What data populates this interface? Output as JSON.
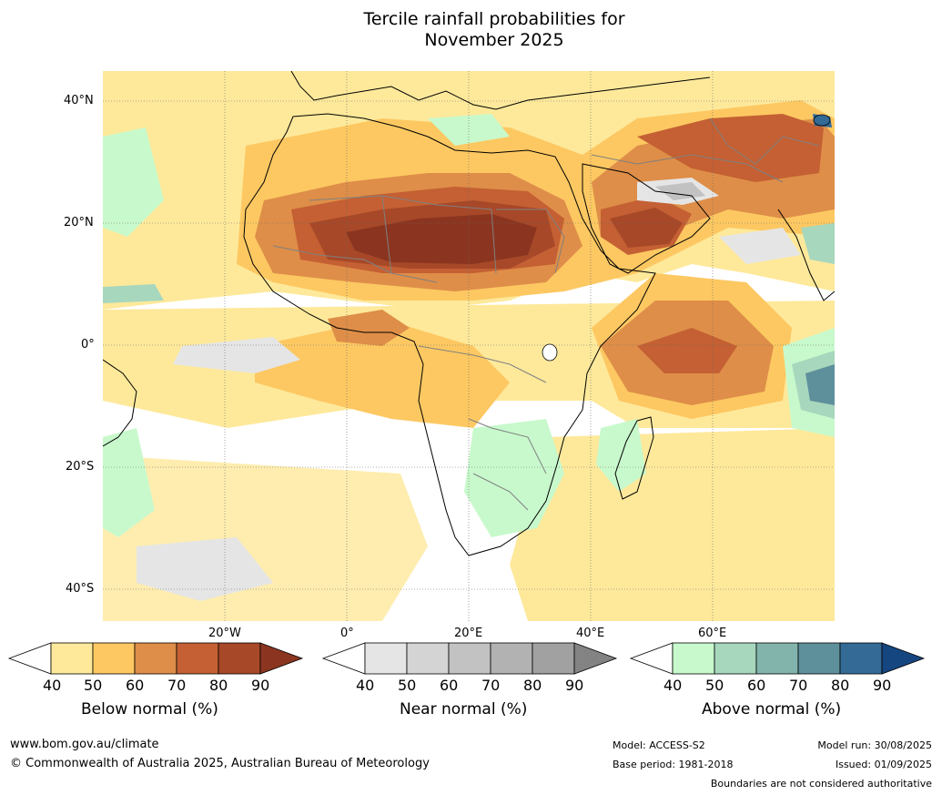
{
  "title": {
    "line1": "Tercile rainfall probabilities for",
    "line2": "November 2025"
  },
  "map": {
    "lat_labels": [
      "40°N",
      "20°N",
      "0°",
      "20°S",
      "40°S"
    ],
    "lon_labels": [
      "20°W",
      "0°",
      "20°E",
      "40°E",
      "60°E"
    ],
    "land_color": "#ffffff",
    "coast_color": "#000000",
    "border_color": "#808080"
  },
  "colorbars": [
    {
      "name": "Below normal (%)",
      "ticks": [
        "40",
        "50",
        "60",
        "70",
        "80",
        "90"
      ],
      "colors": [
        "#fee99b",
        "#fdc862",
        "#de8e48",
        "#c46033",
        "#a74828",
        "#8b3520"
      ]
    },
    {
      "name": "Near normal (%)",
      "ticks": [
        "40",
        "50",
        "60",
        "70",
        "80",
        "90"
      ],
      "colors": [
        "#e5e5e5",
        "#d4d4d4",
        "#c2c2c2",
        "#b2b2b2",
        "#a1a1a1",
        "#838383"
      ]
    },
    {
      "name": "Above normal (%)",
      "ticks": [
        "40",
        "50",
        "60",
        "70",
        "80",
        "90"
      ],
      "colors": [
        "#c8f9cc",
        "#a7d7bd",
        "#82b4ab",
        "#5e909c",
        "#336a96",
        "#16467f"
      ]
    }
  ],
  "footer": {
    "url": "www.bom.gov.au/climate",
    "copyright": "© Commonwealth of Australia 2025, Australian Bureau of Meteorology",
    "model": "Model: ACCESS-S2",
    "base_period": "Base period: 1981-2018",
    "model_run": "Model run: 30/08/2025",
    "issued": "Issued: 01/09/2025",
    "disclaimer": "Boundaries are not considered authoritative"
  }
}
